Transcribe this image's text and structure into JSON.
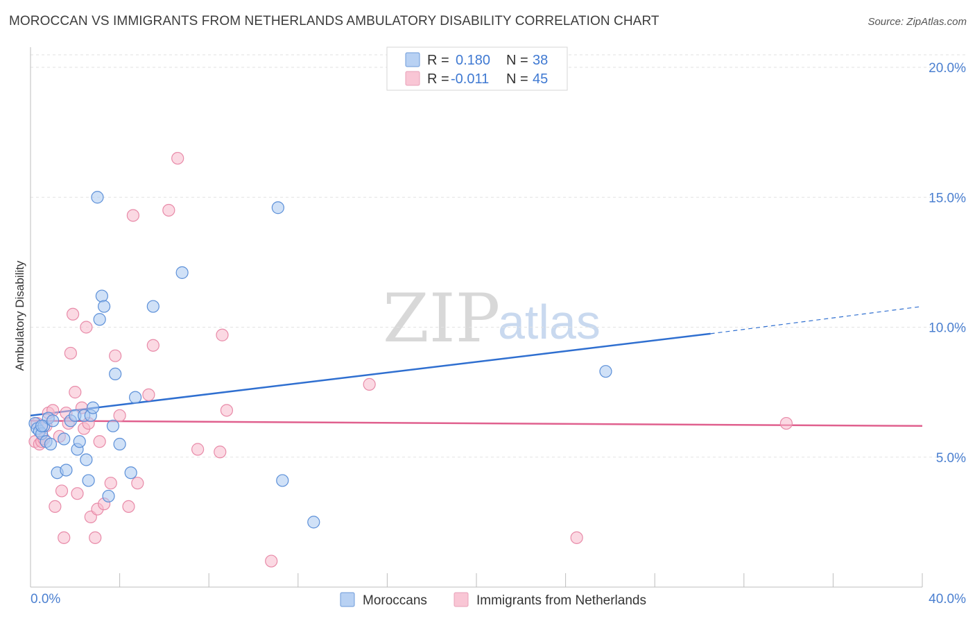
{
  "header": {
    "title": "MOROCCAN VS IMMIGRANTS FROM NETHERLANDS AMBULATORY DISABILITY CORRELATION CHART",
    "source": "Source: ZipAtlas.com"
  },
  "legend": {
    "r_label": "R =",
    "n_label": "N =",
    "rows": [
      {
        "r": "0.180",
        "n": "38"
      },
      {
        "r": "-0.011",
        "n": "45"
      }
    ]
  },
  "watermark": {
    "zip": "ZIP",
    "atlas": "atlas"
  },
  "bottom_legend": [
    "Moroccans",
    "Immigrants from Netherlands"
  ],
  "colors": {
    "blue_fill": "#a9c8f0",
    "blue_stroke": "#5b8fd8",
    "blue_line": "#2f6fd0",
    "pink_fill": "#f7b9cc",
    "pink_stroke": "#e88aa8",
    "pink_line": "#e0608e",
    "tick_text": "#4a7fd0"
  },
  "chart_data": {
    "type": "scatter",
    "title": "MOROCCAN VS IMMIGRANTS FROM NETHERLANDS AMBULATORY DISABILITY CORRELATION CHART",
    "xlabel": "",
    "ylabel": "Ambulatory Disability",
    "xlim": [
      0,
      40
    ],
    "ylim": [
      0,
      20
    ],
    "x_tick_labels": [
      "0.0%",
      "40.0%"
    ],
    "y_ticks": [
      5,
      10,
      15,
      20
    ],
    "y_tick_labels": [
      "5.0%",
      "10.0%",
      "15.0%",
      "20.0%"
    ],
    "grid": true,
    "legend_position": "top-center",
    "series": [
      {
        "name": "Moroccans",
        "r": 0.18,
        "n": 38,
        "trend": {
          "x0": 0,
          "y0": 6.6,
          "x1": 30.5,
          "y1": 9.75,
          "dash_x1": 40,
          "dash_y1": 10.8
        },
        "points": [
          [
            0.2,
            6.3
          ],
          [
            0.3,
            6.1
          ],
          [
            0.4,
            6.0
          ],
          [
            0.5,
            5.9
          ],
          [
            0.6,
            6.2
          ],
          [
            0.7,
            5.6
          ],
          [
            0.8,
            6.5
          ],
          [
            0.9,
            5.5
          ],
          [
            1.0,
            6.4
          ],
          [
            1.2,
            4.4
          ],
          [
            1.5,
            5.7
          ],
          [
            1.6,
            4.5
          ],
          [
            1.8,
            6.4
          ],
          [
            2.0,
            6.6
          ],
          [
            2.1,
            5.3
          ],
          [
            2.2,
            5.6
          ],
          [
            2.4,
            6.6
          ],
          [
            2.5,
            4.9
          ],
          [
            2.6,
            4.1
          ],
          [
            2.7,
            6.6
          ],
          [
            2.8,
            6.9
          ],
          [
            3.0,
            15.0
          ],
          [
            3.1,
            10.3
          ],
          [
            3.2,
            11.2
          ],
          [
            3.3,
            10.8
          ],
          [
            3.5,
            3.5
          ],
          [
            3.7,
            6.2
          ],
          [
            3.8,
            8.2
          ],
          [
            4.0,
            5.5
          ],
          [
            4.5,
            4.4
          ],
          [
            4.7,
            7.3
          ],
          [
            5.5,
            10.8
          ],
          [
            6.8,
            12.1
          ],
          [
            11.1,
            14.6
          ],
          [
            11.3,
            4.1
          ],
          [
            12.7,
            2.5
          ],
          [
            25.8,
            8.3
          ],
          [
            0.5,
            6.2
          ]
        ]
      },
      {
        "name": "Immigrants from Netherlands",
        "r": -0.011,
        "n": 45,
        "trend": {
          "x0": 0,
          "y0": 6.4,
          "x1": 40,
          "y1": 6.2
        },
        "points": [
          [
            0.2,
            5.6
          ],
          [
            0.3,
            6.3
          ],
          [
            0.4,
            5.5
          ],
          [
            0.5,
            5.6
          ],
          [
            0.6,
            5.7
          ],
          [
            0.7,
            6.2
          ],
          [
            0.8,
            6.7
          ],
          [
            1.0,
            6.8
          ],
          [
            1.1,
            3.1
          ],
          [
            1.3,
            5.8
          ],
          [
            1.4,
            3.7
          ],
          [
            1.5,
            1.9
          ],
          [
            1.6,
            6.7
          ],
          [
            1.7,
            6.3
          ],
          [
            1.8,
            9.0
          ],
          [
            1.9,
            10.5
          ],
          [
            2.0,
            7.5
          ],
          [
            2.1,
            3.6
          ],
          [
            2.3,
            6.9
          ],
          [
            2.4,
            6.1
          ],
          [
            2.5,
            10.0
          ],
          [
            2.6,
            6.3
          ],
          [
            2.7,
            2.7
          ],
          [
            2.9,
            1.9
          ],
          [
            3.0,
            3.0
          ],
          [
            3.1,
            5.6
          ],
          [
            3.3,
            3.2
          ],
          [
            3.6,
            4.0
          ],
          [
            3.8,
            8.9
          ],
          [
            4.0,
            6.6
          ],
          [
            4.4,
            3.1
          ],
          [
            4.6,
            14.3
          ],
          [
            4.8,
            4.0
          ],
          [
            5.3,
            7.4
          ],
          [
            5.5,
            9.3
          ],
          [
            6.2,
            14.5
          ],
          [
            6.6,
            16.5
          ],
          [
            7.5,
            5.3
          ],
          [
            8.5,
            5.2
          ],
          [
            8.6,
            9.7
          ],
          [
            8.8,
            6.8
          ],
          [
            10.8,
            1.0
          ],
          [
            15.2,
            7.8
          ],
          [
            24.5,
            1.9
          ],
          [
            33.9,
            6.3
          ]
        ]
      }
    ]
  }
}
